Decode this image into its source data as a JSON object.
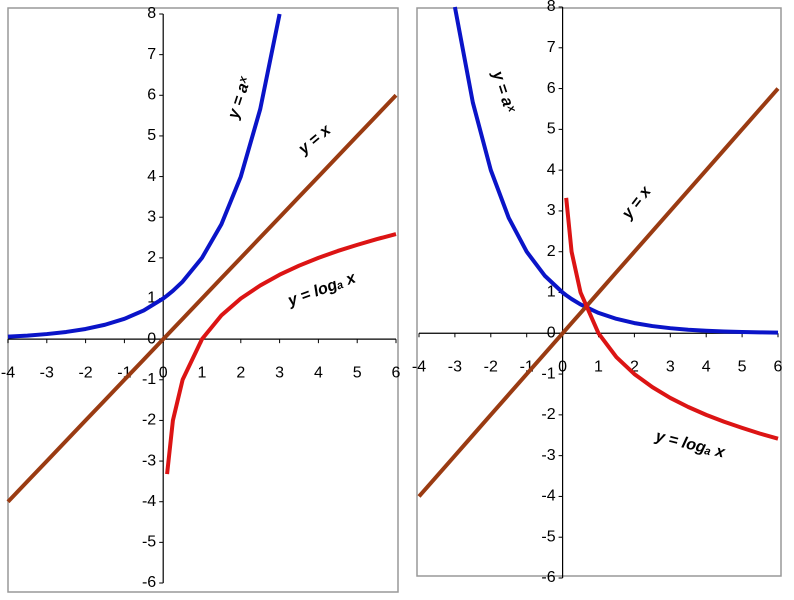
{
  "chart_data": [
    {
      "type": "line",
      "x": [
        -4,
        -3.5,
        -3,
        -2.5,
        -2,
        -1.5,
        -1,
        -0.5,
        0,
        0.1,
        0.25,
        0.5,
        1,
        1.5,
        2,
        2.5,
        3,
        3.5,
        4,
        4.5,
        5,
        5.5,
        6
      ],
      "series": [
        {
          "name": "y = aˣ",
          "color": "#0a14c8",
          "values": [
            0.0625,
            0.088,
            0.125,
            0.177,
            0.25,
            0.354,
            0.5,
            0.707,
            1,
            1.072,
            1.189,
            1.414,
            2,
            2.828,
            4,
            5.657,
            8,
            null,
            null,
            null,
            null,
            null,
            null
          ]
        },
        {
          "name": "y = x",
          "color": "#9a3b12",
          "values": [
            -4,
            -3.5,
            -3,
            -2.5,
            -2,
            -1.5,
            -1,
            -0.5,
            0,
            0.1,
            0.25,
            0.5,
            1,
            1.5,
            2,
            2.5,
            3,
            3.5,
            4,
            4.5,
            5,
            5.5,
            6
          ]
        },
        {
          "name": "y = logₐ x",
          "color": "#dc1414",
          "values": [
            null,
            null,
            null,
            null,
            null,
            null,
            null,
            null,
            null,
            -3.32,
            -2,
            -1,
            0,
            0.585,
            1,
            1.32,
            1.585,
            1.807,
            2,
            2.17,
            2.32,
            2.46,
            2.585
          ]
        }
      ],
      "xlim": [
        -4,
        6
      ],
      "ylim": [
        -6,
        8
      ],
      "xticks": [
        -4,
        -3,
        -2,
        -1,
        0,
        1,
        2,
        3,
        4,
        5,
        6
      ],
      "yticks": [
        -6,
        -5,
        -4,
        -3,
        -2,
        -1,
        0,
        1,
        2,
        3,
        4,
        5,
        6,
        7,
        8
      ]
    },
    {
      "type": "line",
      "x": [
        -4,
        -3.5,
        -3,
        -2.5,
        -2,
        -1.5,
        -1,
        -0.5,
        0,
        0.1,
        0.25,
        0.5,
        1,
        1.5,
        2,
        2.5,
        3,
        3.5,
        4,
        4.5,
        5,
        5.5,
        6
      ],
      "series": [
        {
          "name": "y = aˣ",
          "color": "#0a14c8",
          "values": [
            null,
            null,
            8,
            5.657,
            4,
            2.828,
            2,
            1.414,
            1,
            0.933,
            0.841,
            0.707,
            0.5,
            0.354,
            0.25,
            0.177,
            0.125,
            0.088,
            0.0625,
            0.044,
            0.031,
            0.022,
            0.016
          ]
        },
        {
          "name": "y = x",
          "color": "#9a3b12",
          "values": [
            -4,
            -3.5,
            -3,
            -2.5,
            -2,
            -1.5,
            -1,
            -0.5,
            0,
            0.1,
            0.25,
            0.5,
            1,
            1.5,
            2,
            2.5,
            3,
            3.5,
            4,
            4.5,
            5,
            5.5,
            6
          ]
        },
        {
          "name": "y = logₐ x",
          "color": "#dc1414",
          "values": [
            null,
            null,
            null,
            null,
            null,
            null,
            null,
            null,
            null,
            3.32,
            2,
            1,
            0,
            -0.585,
            -1,
            -1.32,
            -1.585,
            -1.807,
            -2,
            -2.17,
            -2.32,
            -2.46,
            -2.585
          ]
        }
      ],
      "xlim": [
        -4,
        6
      ],
      "ylim": [
        -6,
        8
      ],
      "xticks": [
        -4,
        -3,
        -2,
        -1,
        0,
        1,
        2,
        3,
        4,
        5,
        6
      ],
      "yticks": [
        -6,
        -5,
        -4,
        -3,
        -2,
        -1,
        0,
        1,
        2,
        3,
        4,
        5,
        6,
        7,
        8
      ]
    }
  ]
}
